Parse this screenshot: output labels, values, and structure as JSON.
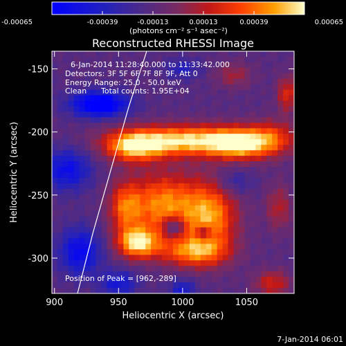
{
  "chart_data": {
    "type": "heatmap",
    "title": "Reconstructed RHESSI Image",
    "xlabel": "Heliocentric X (arcsec)",
    "ylabel": "Heliocentric Y (arcsec)",
    "xlim": [
      898,
      1087
    ],
    "ylim": [
      -328,
      -136
    ],
    "xticks": [
      900,
      950,
      1000,
      1050
    ],
    "yticks": [
      -150,
      -200,
      -250,
      -300
    ],
    "colorbar": {
      "range": [
        -0.00065,
        0.00065
      ],
      "ticks": [
        "-0.00065",
        "-0.00039",
        "-0.00013",
        "0.00013",
        "0.00039",
        "0.00065"
      ],
      "unit_label": "(photons cm⁻² s⁻¹ asec⁻²)"
    },
    "annotations": {
      "time_range": "6-Jan-2014 11:28:40.000 to 11:33:42.000",
      "detectors": "Detectors: 3F 5F 6F 7F 8F 9F, Att 0",
      "energy": "Energy Range: 25.0 - 50.0 keV",
      "clean": "Clean",
      "counts": "Total counts: 1.95E+04",
      "peak": "Position of Peak = [962,-289]"
    },
    "peak": [
      962,
      -289
    ],
    "limb_arc": [
      [
        918,
        -328
      ],
      [
        930,
        -280
      ],
      [
        944,
        -230
      ],
      [
        958,
        -180
      ],
      [
        972,
        -136
      ]
    ],
    "sources": [
      {
        "x": 1005,
        "y": -207,
        "w": 52,
        "h": 12,
        "amp": 1.0
      },
      {
        "x": 962,
        "y": -212,
        "w": 22,
        "h": 12,
        "amp": 0.75
      },
      {
        "x": 1045,
        "y": -210,
        "w": 22,
        "h": 12,
        "amp": 0.7
      },
      {
        "x": 1070,
        "y": -205,
        "w": 18,
        "h": 14,
        "amp": 0.45
      },
      {
        "x": 985,
        "y": -258,
        "w": 28,
        "h": 25,
        "amp": 0.8
      },
      {
        "x": 1022,
        "y": -268,
        "w": 20,
        "h": 28,
        "amp": 0.78
      },
      {
        "x": 965,
        "y": -288,
        "w": 16,
        "h": 12,
        "amp": 0.95
      },
      {
        "x": 1008,
        "y": -295,
        "w": 26,
        "h": 12,
        "amp": 0.7
      },
      {
        "x": 993,
        "y": -275,
        "w": 8,
        "h": 8,
        "amp": -0.55
      },
      {
        "x": 1017,
        "y": -280,
        "w": 6,
        "h": 6,
        "amp": -0.5
      },
      {
        "x": 955,
        "y": -260,
        "w": 12,
        "h": 20,
        "amp": 0.55
      },
      {
        "x": 1075,
        "y": -260,
        "w": 10,
        "h": 18,
        "amp": 0.35
      },
      {
        "x": 1070,
        "y": -320,
        "w": 14,
        "h": 10,
        "amp": 0.45
      },
      {
        "x": 1040,
        "y": -155,
        "w": 14,
        "h": 10,
        "amp": 0.3
      },
      {
        "x": 1082,
        "y": -170,
        "w": 8,
        "h": 14,
        "amp": 0.5
      },
      {
        "x": 935,
        "y": -178,
        "w": 22,
        "h": 10,
        "amp": -0.85
      },
      {
        "x": 910,
        "y": -230,
        "w": 18,
        "h": 16,
        "amp": -0.55
      },
      {
        "x": 920,
        "y": -295,
        "w": 16,
        "h": 18,
        "amp": -0.6
      },
      {
        "x": 1040,
        "y": -240,
        "w": 14,
        "h": 10,
        "amp": -0.25
      },
      {
        "x": 950,
        "y": -320,
        "w": 14,
        "h": 10,
        "amp": -0.45
      },
      {
        "x": 1000,
        "y": -150,
        "w": 14,
        "h": 8,
        "amp": -0.3
      },
      {
        "x": 1000,
        "y": -325,
        "w": 10,
        "h": 8,
        "amp": -0.4
      }
    ]
  },
  "footer": {
    "timestamp": "7-Jan-2014 06:01"
  }
}
